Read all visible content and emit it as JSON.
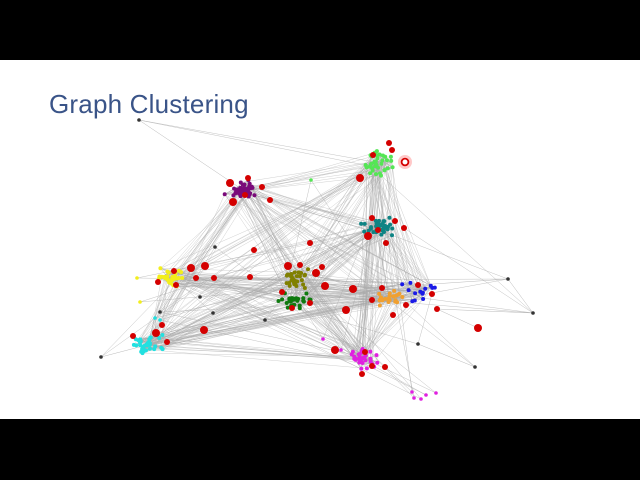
{
  "slide": {
    "title": "Graph Clustering"
  },
  "colors": {
    "letterbox": "#000000",
    "slide_background": "#ffffff",
    "title": "#3a5488",
    "edge": "#a9a9a9",
    "hub_node": "#d40000",
    "outlier_node": "#333333"
  },
  "clusters": [
    {
      "name": "purple",
      "color": "#7a0a7a"
    },
    {
      "name": "lime-green",
      "color": "#55e655"
    },
    {
      "name": "teal",
      "color": "#0e8484"
    },
    {
      "name": "yellow",
      "color": "#f2ee1c"
    },
    {
      "name": "olive",
      "color": "#808000"
    },
    {
      "name": "dark-green",
      "color": "#0f7a0f"
    },
    {
      "name": "orange",
      "color": "#f0a030"
    },
    {
      "name": "blue",
      "color": "#1a1ae6"
    },
    {
      "name": "cyan",
      "color": "#22e0e0"
    },
    {
      "name": "magenta",
      "color": "#e020e0"
    }
  ]
}
